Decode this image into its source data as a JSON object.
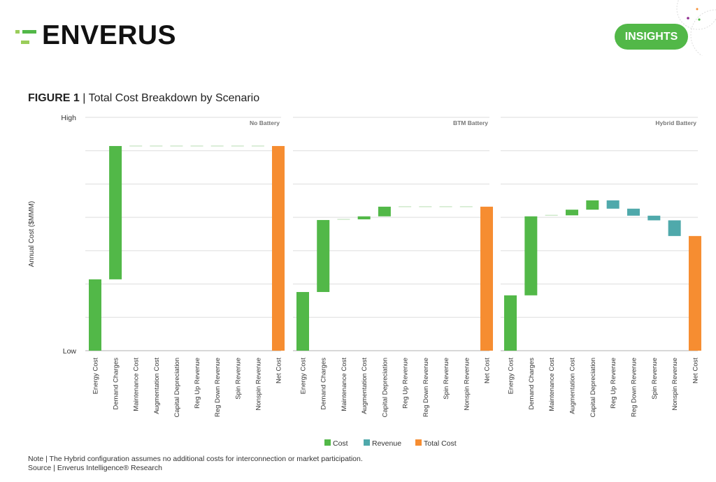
{
  "header": {
    "logo_text": "ENVERUS",
    "badge_label": "INSIGHTS",
    "figure_label": "FIGURE 1",
    "figure_title": "Total Cost Breakdown by Scenario"
  },
  "colors": {
    "cost": "#52b848",
    "revenue": "#4fa9ab",
    "total": "#f68d31",
    "brand_green": "#52b848"
  },
  "chart_data": {
    "type": "waterfall",
    "ylabel": "Annual Cost ($MMM)",
    "y_tick_labels": {
      "high": "High",
      "low": "Low"
    },
    "ylim": [
      0,
      7
    ],
    "grid": true,
    "categories": [
      "Energy Cost",
      "Demand Charges",
      "Maintenance Cost",
      "Augmentation Cost",
      "Capital Depreciation",
      "Reg Up Revenue",
      "Reg Down Revenue",
      "Spin Revenue",
      "Nonspin Revenue",
      "Net Cost"
    ],
    "category_types": [
      "cost",
      "cost",
      "cost",
      "cost",
      "cost",
      "revenue",
      "revenue",
      "revenue",
      "revenue",
      "total"
    ],
    "panels": [
      {
        "title": "No Battery",
        "deltas": [
          2.14,
          4.0,
          0,
          0,
          0,
          0,
          0,
          0,
          0
        ],
        "net": 6.14
      },
      {
        "title": "BTM Battery",
        "deltas": [
          1.76,
          2.16,
          0.02,
          0.09,
          0.29,
          0,
          0,
          0,
          0
        ],
        "net": 4.32
      },
      {
        "title": "Hybrid Battery",
        "deltas": [
          1.66,
          2.37,
          0.03,
          0.17,
          0.28,
          -0.25,
          -0.21,
          -0.14,
          -0.47
        ],
        "net": 3.44
      }
    ],
    "legend": [
      {
        "label": "Cost",
        "type": "cost"
      },
      {
        "label": "Revenue",
        "type": "revenue"
      },
      {
        "label": "Total Cost",
        "type": "total"
      }
    ],
    "legend_position": "bottom"
  },
  "footer": {
    "note": "Note | The Hybrid configuration assumes no additional costs for interconnection or market participation.",
    "source": "Source | Enverus Intelligence® Research"
  }
}
